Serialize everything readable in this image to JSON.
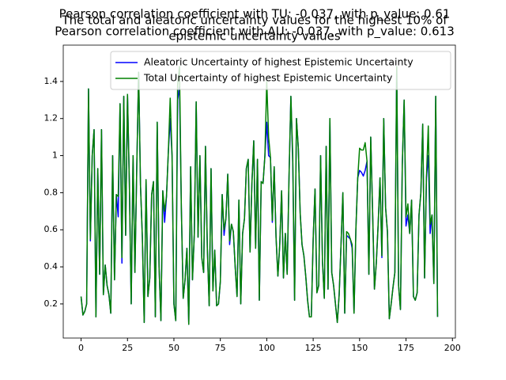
{
  "chart_data": {
    "type": "line",
    "titles": [
      "Pearson correlation coefficient with TU: -0.037, with p_value: 0.61",
      "The total and aleatoric uncertainty values for the highest 10% of",
      "Pearson correlation coefficient with AU: -0.037, with p_value: 0.613",
      "epistemic uncertainty values"
    ],
    "x": [
      0,
      1,
      2,
      3,
      4,
      5,
      6,
      7,
      8,
      9,
      10,
      11,
      12,
      13,
      14,
      15,
      16,
      17,
      18,
      19,
      20,
      21,
      22,
      23,
      24,
      25,
      26,
      27,
      28,
      29,
      30,
      31,
      32,
      33,
      34,
      35,
      36,
      37,
      38,
      39,
      40,
      41,
      42,
      43,
      44,
      45,
      46,
      47,
      48,
      49,
      50,
      51,
      52,
      53,
      54,
      55,
      56,
      57,
      58,
      59,
      60,
      61,
      62,
      63,
      64,
      65,
      66,
      67,
      68,
      69,
      70,
      71,
      72,
      73,
      74,
      75,
      76,
      77,
      78,
      79,
      80,
      81,
      82,
      83,
      84,
      85,
      86,
      87,
      88,
      89,
      90,
      91,
      92,
      93,
      94,
      95,
      96,
      97,
      98,
      99,
      100,
      101,
      102,
      103,
      104,
      105,
      106,
      107,
      108,
      109,
      110,
      111,
      112,
      113,
      114,
      115,
      116,
      117,
      118,
      119,
      120,
      121,
      122,
      123,
      124,
      125,
      126,
      127,
      128,
      129,
      130,
      131,
      132,
      133,
      134,
      135,
      136,
      137,
      138,
      139,
      140,
      141,
      142,
      143,
      144,
      145,
      146,
      147,
      148,
      149,
      150,
      151,
      152,
      153,
      154,
      155,
      156,
      157,
      158,
      159,
      160,
      161,
      162,
      163,
      164,
      165,
      166,
      167,
      168,
      169,
      170,
      171,
      172,
      173,
      174,
      175,
      176,
      177,
      178,
      179,
      180,
      181,
      182,
      183,
      184,
      185,
      186,
      187,
      188,
      189,
      190,
      191,
      192
    ],
    "series": [
      {
        "name": "Aleatoric Uncertainty of highest Epistemic Uncertainty",
        "color": "#0000ff",
        "values": [
          0.24,
          0.14,
          0.16,
          0.2,
          1.36,
          0.54,
          1.0,
          1.14,
          0.13,
          0.93,
          0.36,
          1.14,
          0.25,
          0.41,
          0.3,
          0.25,
          0.15,
          1.0,
          0.33,
          0.79,
          0.67,
          1.28,
          0.42,
          1.32,
          0.57,
          1.33,
          0.85,
          0.2,
          1.0,
          0.37,
          0.94,
          1.45,
          0.84,
          0.56,
          0.1,
          0.87,
          0.24,
          0.34,
          0.79,
          0.86,
          0.13,
          1.18,
          0.4,
          0.11,
          0.81,
          0.64,
          0.78,
          1.02,
          1.2,
          1.0,
          0.2,
          0.11,
          1.3,
          1.37,
          0.72,
          0.23,
          0.33,
          0.5,
          0.09,
          0.94,
          0.33,
          0.58,
          1.29,
          0.56,
          1.0,
          0.45,
          0.37,
          1.05,
          0.5,
          0.19,
          0.93,
          0.27,
          0.49,
          0.19,
          0.2,
          0.32,
          0.79,
          0.57,
          0.66,
          0.9,
          0.52,
          0.63,
          0.59,
          0.4,
          0.24,
          0.76,
          0.2,
          0.58,
          0.66,
          0.93,
          0.98,
          0.48,
          0.85,
          1.08,
          0.5,
          0.98,
          0.22,
          0.86,
          0.85,
          1.0,
          1.18,
          1.0,
          0.99,
          0.64,
          0.94,
          0.56,
          0.35,
          0.52,
          0.81,
          0.34,
          0.58,
          0.36,
          0.89,
          1.32,
          0.96,
          0.22,
          1.2,
          1.04,
          0.69,
          0.52,
          0.46,
          0.35,
          0.22,
          0.13,
          0.13,
          0.55,
          0.82,
          0.26,
          0.3,
          1.0,
          0.43,
          0.23,
          1.05,
          0.28,
          1.2,
          0.37,
          0.3,
          0.2,
          0.1,
          0.25,
          0.52,
          0.8,
          0.15,
          0.57,
          0.56,
          0.55,
          0.5,
          0.15,
          0.6,
          0.88,
          0.92,
          0.91,
          0.89,
          0.92,
          0.97,
          0.36,
          1.1,
          0.7,
          0.28,
          0.42,
          0.63,
          0.88,
          0.45,
          1.2,
          0.72,
          0.59,
          0.12,
          0.2,
          0.29,
          0.37,
          1.48,
          0.3,
          0.17,
          0.95,
          1.3,
          0.62,
          0.68,
          0.58,
          0.76,
          0.24,
          0.22,
          0.26,
          0.68,
          0.8,
          1.17,
          0.34,
          0.88,
          1.0,
          0.58,
          0.68,
          0.31,
          1.32,
          0.13
        ]
      },
      {
        "name": "Total Uncertainty of highest Epistemic Uncertainty",
        "color": "#008000",
        "values": [
          0.24,
          0.14,
          0.16,
          0.2,
          1.36,
          0.55,
          1.0,
          1.14,
          0.13,
          0.93,
          0.36,
          1.14,
          0.25,
          0.41,
          0.3,
          0.25,
          0.15,
          1.0,
          0.33,
          0.79,
          0.78,
          1.28,
          0.45,
          1.32,
          0.57,
          1.33,
          0.85,
          0.2,
          1.0,
          0.37,
          0.94,
          1.45,
          0.84,
          0.56,
          0.1,
          0.87,
          0.24,
          0.34,
          0.79,
          0.86,
          0.13,
          1.18,
          0.4,
          0.11,
          0.81,
          0.7,
          0.78,
          1.02,
          1.31,
          1.0,
          0.2,
          0.11,
          1.38,
          1.48,
          0.72,
          0.23,
          0.33,
          0.5,
          0.09,
          0.94,
          0.33,
          0.58,
          1.29,
          0.56,
          1.0,
          0.45,
          0.37,
          1.05,
          0.5,
          0.19,
          0.93,
          0.27,
          0.49,
          0.19,
          0.2,
          0.32,
          0.79,
          0.6,
          0.66,
          0.9,
          0.54,
          0.63,
          0.59,
          0.4,
          0.24,
          0.76,
          0.2,
          0.58,
          0.66,
          0.93,
          0.98,
          0.48,
          0.85,
          1.08,
          0.5,
          0.98,
          0.22,
          0.86,
          0.85,
          1.0,
          1.4,
          1.1,
          0.99,
          0.65,
          0.94,
          0.56,
          0.35,
          0.52,
          0.81,
          0.34,
          0.58,
          0.36,
          0.89,
          1.32,
          1.0,
          0.22,
          1.2,
          1.04,
          0.69,
          0.52,
          0.46,
          0.35,
          0.22,
          0.13,
          0.13,
          0.55,
          0.82,
          0.26,
          0.3,
          1.0,
          0.43,
          0.23,
          1.05,
          0.28,
          1.2,
          0.37,
          0.3,
          0.2,
          0.1,
          0.25,
          0.52,
          0.8,
          0.15,
          0.59,
          0.58,
          0.55,
          0.52,
          0.15,
          0.6,
          0.88,
          1.04,
          1.03,
          1.03,
          1.07,
          0.97,
          0.36,
          1.1,
          0.7,
          0.28,
          0.42,
          0.63,
          0.88,
          0.46,
          1.2,
          0.72,
          0.59,
          0.12,
          0.2,
          0.29,
          0.37,
          1.48,
          0.3,
          0.17,
          0.95,
          1.3,
          0.67,
          0.74,
          0.58,
          0.76,
          0.24,
          0.22,
          0.26,
          0.68,
          0.8,
          1.17,
          0.34,
          0.88,
          1.16,
          0.63,
          0.68,
          0.31,
          1.32,
          0.13
        ]
      }
    ],
    "xlim": [
      -9.6,
      201.6
    ],
    "xticks": [
      0,
      25,
      50,
      75,
      100,
      125,
      150,
      175,
      200
    ],
    "ylim": [
      0.016,
      1.596
    ],
    "yticks": [
      0.2,
      0.4,
      0.6,
      0.8,
      1.0,
      1.2,
      1.4
    ],
    "legend": "upper right",
    "grid": false
  }
}
